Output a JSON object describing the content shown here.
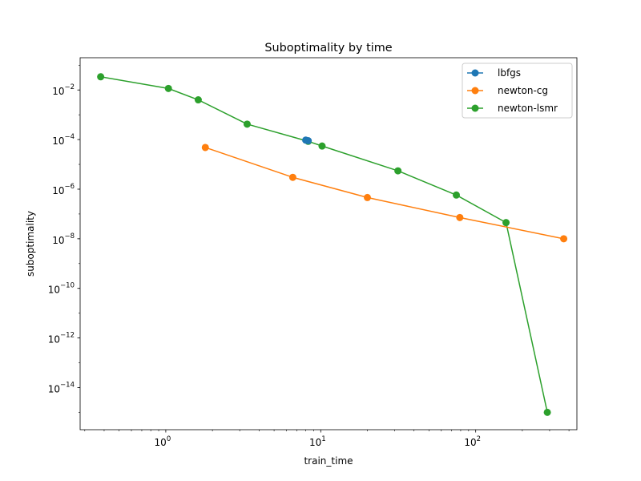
{
  "colors": {
    "lbfgs": "#1f77b4",
    "newton-cg": "#ff7f0e",
    "newton-lsmr": "#2ca02c"
  },
  "chart_data": {
    "type": "line",
    "title": "Suboptimality by time",
    "xlabel": "train_time",
    "ylabel": "suboptimality",
    "xscale": "log",
    "yscale": "log",
    "xlim": [
      0.28,
      450
    ],
    "ylim": [
      2e-16,
      0.2
    ],
    "xticks": [
      {
        "value": 1,
        "base": "10",
        "exp": "0"
      },
      {
        "value": 10,
        "base": "10",
        "exp": "1"
      },
      {
        "value": 100,
        "base": "10",
        "exp": "2"
      }
    ],
    "yticks": [
      {
        "value": 1e-14,
        "base": "10",
        "exp": "−14"
      },
      {
        "value": 1e-12,
        "base": "10",
        "exp": "−12"
      },
      {
        "value": 1e-10,
        "base": "10",
        "exp": "−10"
      },
      {
        "value": 1e-08,
        "base": "10",
        "exp": "−8"
      },
      {
        "value": 1e-06,
        "base": "10",
        "exp": "−6"
      },
      {
        "value": 0.0001,
        "base": "10",
        "exp": "−4"
      },
      {
        "value": 0.01,
        "base": "10",
        "exp": "−2"
      }
    ],
    "grid": false,
    "legend_position": "top-right",
    "series": [
      {
        "name": "lbfgs",
        "x": [
          8.0,
          8.3
        ],
        "y": [
          9.5e-05,
          9e-05
        ]
      },
      {
        "name": "newton-cg",
        "x": [
          1.8,
          6.6,
          20.0,
          79.0,
          370.0
        ],
        "y": [
          4.8e-05,
          3e-06,
          4.6e-07,
          7.2e-08,
          1e-08
        ]
      },
      {
        "name": "newton-lsmr",
        "x": [
          0.38,
          1.04,
          1.62,
          3.35,
          8.3,
          10.2,
          31.5,
          75.0,
          157.0,
          290.0
        ],
        "y": [
          0.034,
          0.0115,
          0.004,
          0.00042,
          8.5e-05,
          5.5e-05,
          5.5e-06,
          5.8e-07,
          4.5e-08,
          1e-15
        ]
      }
    ]
  }
}
